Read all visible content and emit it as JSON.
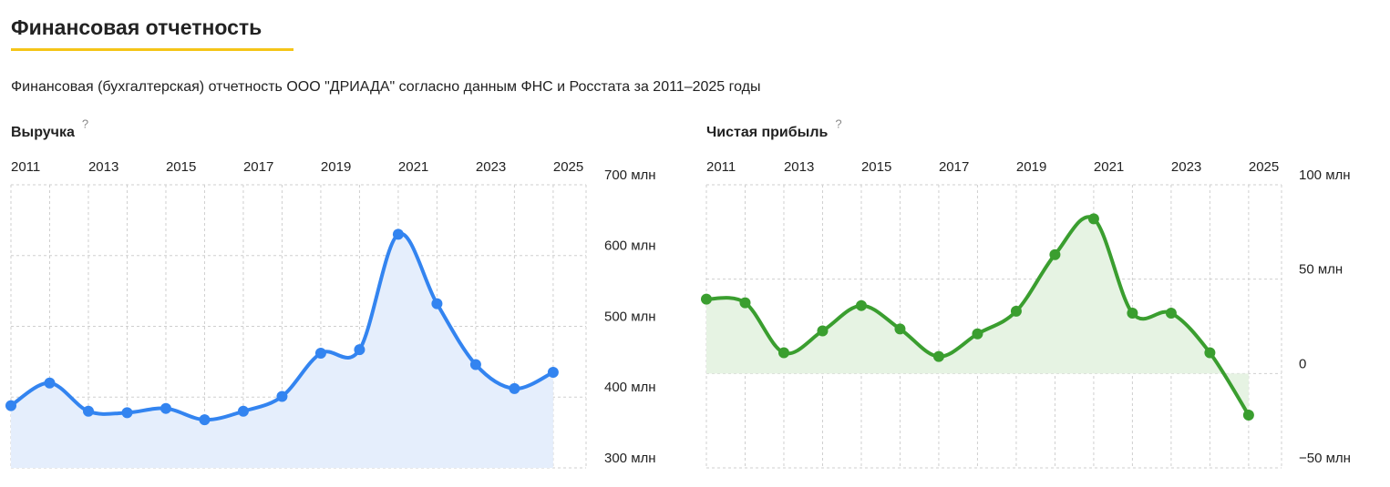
{
  "header": {
    "title": "Финансовая отчетность",
    "subtitle": "Финансовая (бухгалтерская) отчетность ООО \"ДРИАДА\" согласно данным ФНС и Росстата за 2011–2025 годы"
  },
  "chart_data": [
    {
      "type": "line",
      "title": "Выручка",
      "help": "?",
      "x": [
        2011,
        2012,
        2013,
        2014,
        2015,
        2016,
        2017,
        2018,
        2019,
        2020,
        2021,
        2022,
        2023,
        2024,
        2025
      ],
      "values": [
        388,
        420,
        380,
        378,
        384,
        368,
        380,
        401,
        462,
        467,
        630,
        532,
        446,
        412,
        435
      ],
      "color": "#3384f0",
      "fill": "#e5eefc",
      "area_to": "bottom",
      "xlim": [
        2011,
        2025.85
      ],
      "xticks": [
        2011,
        2013,
        2015,
        2017,
        2019,
        2021,
        2023,
        2025
      ],
      "ylim": [
        300,
        700
      ],
      "yticks": [
        {
          "value": 300,
          "label": "300 млн"
        },
        {
          "value": 400,
          "label": "400 млн"
        },
        {
          "value": 500,
          "label": "500 млн"
        },
        {
          "value": 600,
          "label": "600 млн"
        },
        {
          "value": 700,
          "label": "700 млн"
        }
      ],
      "grid": true
    },
    {
      "type": "line",
      "title": "Чистая прибыль",
      "help": "?",
      "x": [
        2011,
        2012,
        2013,
        2014,
        2015,
        2016,
        2017,
        2018,
        2019,
        2020,
        2021,
        2022,
        2023,
        2024,
        2025
      ],
      "values": [
        39.4,
        37.5,
        11,
        22.6,
        36,
        23.6,
        9,
        21,
        33,
        63,
        82,
        32,
        32,
        11,
        -22
      ],
      "color": "#3a9e2f",
      "fill": "#e6f3e3",
      "area_to": "zero",
      "xlim": [
        2011,
        2025.85
      ],
      "xticks": [
        2011,
        2013,
        2015,
        2017,
        2019,
        2021,
        2023,
        2025
      ],
      "ylim": [
        -50,
        100
      ],
      "yticks": [
        {
          "value": -50,
          "label": "−50 млн"
        },
        0,
        {
          "value": 50,
          "label": "50 млн"
        },
        {
          "value": 100,
          "label": "100 млн"
        }
      ],
      "grid": true
    }
  ]
}
